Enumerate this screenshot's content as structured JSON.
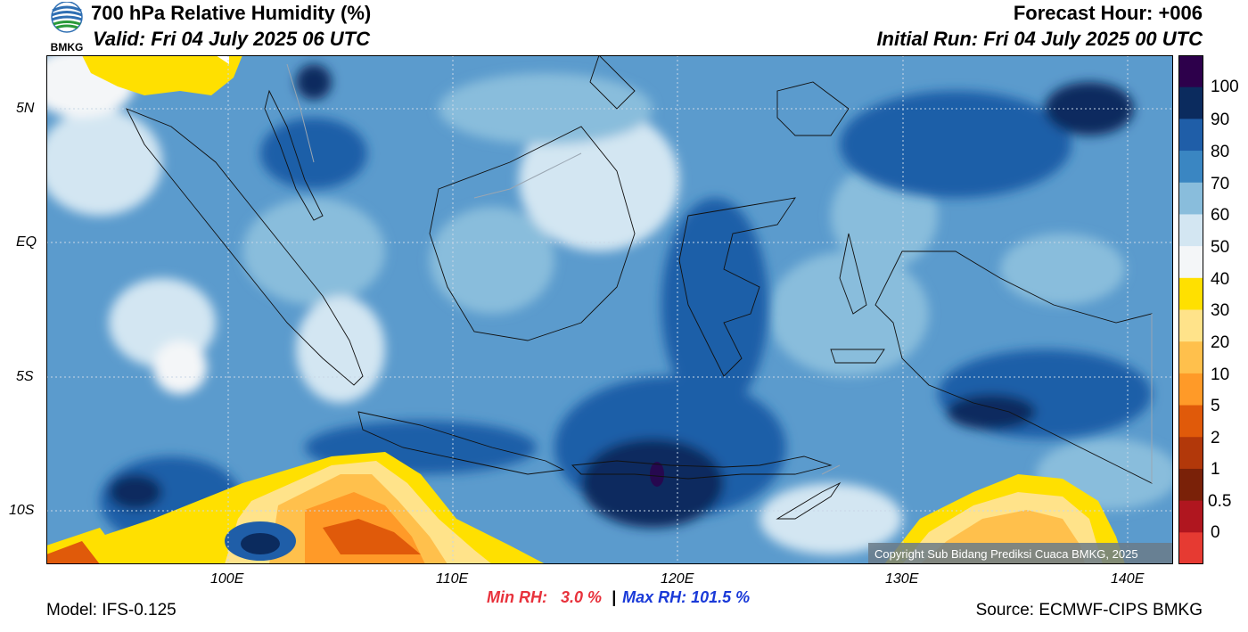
{
  "header": {
    "title": "700 hPa Relative Humidity (%)",
    "valid": "Valid: Fri 04 July 2025 06 UTC",
    "forecast_hour": "Forecast Hour: +006",
    "initial_run": "Initial Run: Fri 04 July 2025 00 UTC"
  },
  "logo": {
    "text": "BMKG"
  },
  "map": {
    "lat_ticks": [
      "5N",
      "EQ",
      "5S",
      "10S"
    ],
    "lon_ticks": [
      "100E",
      "110E",
      "120E",
      "130E",
      "140E"
    ],
    "copyright": "Copyright Sub Bidang Prediksi Cuaca BMKG, 2025"
  },
  "colorbar": {
    "labels": [
      "100",
      "90",
      "80",
      "70",
      "60",
      "50",
      "40",
      "30",
      "20",
      "10",
      "5",
      "2",
      "1",
      "0.5",
      "0"
    ],
    "colors": [
      "#2d004b",
      "#0b2b5e",
      "#1f5ea8",
      "#3a86c2",
      "#89bddc",
      "#d3e6f2",
      "#f4f6f8",
      "#ffe000",
      "#ffe38a",
      "#ffc04c",
      "#ff9a28",
      "#e05a0a",
      "#b2380a",
      "#7a2108",
      "#b0161f",
      "#e63a32"
    ]
  },
  "stats": {
    "min_label": "Min RH:",
    "min_value": "3.0 %",
    "separator": "|",
    "max_label": "Max RH: 101.5 %"
  },
  "footer": {
    "model": "Model: IFS-0.125",
    "source": "Source: ECMWF-CIPS BMKG"
  }
}
